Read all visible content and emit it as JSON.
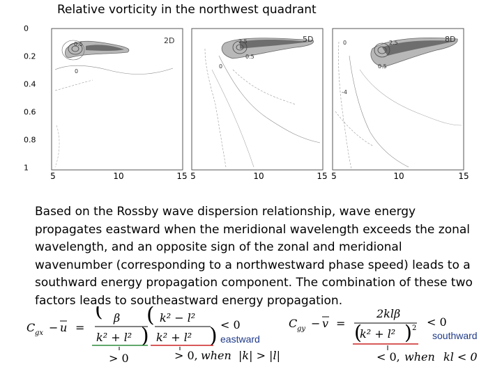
{
  "title": "Relative vorticity in the northwest quadrant",
  "y_ticks": [
    "0",
    "0.2",
    "0.4",
    "0.6",
    "0.8",
    "1"
  ],
  "x_ticks": [
    {
      "label": "5"
    },
    {
      "label": "10"
    },
    {
      "label": "15"
    },
    {
      "label": "5"
    },
    {
      "label": "10"
    },
    {
      "label": "15"
    },
    {
      "label": "5"
    },
    {
      "label": "10"
    },
    {
      "label": "15"
    }
  ],
  "panels": [
    {
      "tag": "2D",
      "contour_labels": [
        "0.5",
        "0"
      ]
    },
    {
      "tag": "5D",
      "contour_labels": [
        "2.5",
        "0.5",
        "0"
      ]
    },
    {
      "tag": "8D",
      "contour_labels": [
        "2.5",
        "0",
        "0.5",
        "-4"
      ]
    }
  ],
  "body_text": "Based on the Rossby wave dispersion relationship, wave energy propagates eastward when the meridional wavelength exceeds the zonal wavelength, and an opposite sign of the zonal and meridional wavenumber (corresponding to a northwestward phase speed) leads to a southward energy propagation component. The combination of these two factors leads to southeastward energy propagation.",
  "formula_x": {
    "lhs_c": "C",
    "lhs_c_sub": "gx",
    "minus": "−",
    "lhs_u": "u",
    "equals": "=",
    "beta": "β",
    "k2_l2": "k² + l²",
    "k2_minus_l2": "k² − l²",
    "relation": "< 0",
    "cond_left": "> 0",
    "cond_right_prefix": "> 0, ",
    "cond_when": "when",
    "cond_right_abs": "|k| > |l|"
  },
  "formula_y": {
    "lhs_c": "C",
    "lhs_c_sub": "gy",
    "minus": "−",
    "lhs_v": "v",
    "equals": "=",
    "num": "2klβ",
    "k2_l2": "k² + l²",
    "exp": "2",
    "relation": "< 0",
    "cond": "< 0, ",
    "cond_when": "when",
    "cond_kl": "kl < 0"
  },
  "eastward_label": "eastward",
  "southward_label": "southward",
  "colors": {
    "label_blue": "#1f3a8a",
    "underline_green": "#2e8b3a",
    "underline_red": "#cc2222",
    "shade_dark": "#6e6e6e",
    "shade_light": "#b8b8b8"
  }
}
